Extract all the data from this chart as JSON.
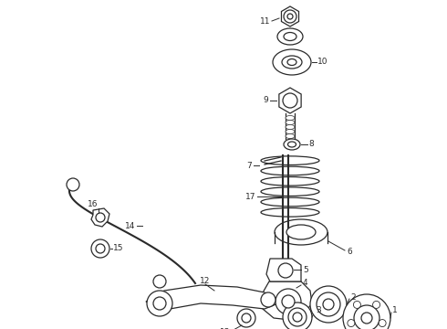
{
  "bg_color": "#ffffff",
  "line_color": "#2a2a2a",
  "fig_width": 4.9,
  "fig_height": 3.6,
  "dpi": 100,
  "label_fontsize": 6.5
}
